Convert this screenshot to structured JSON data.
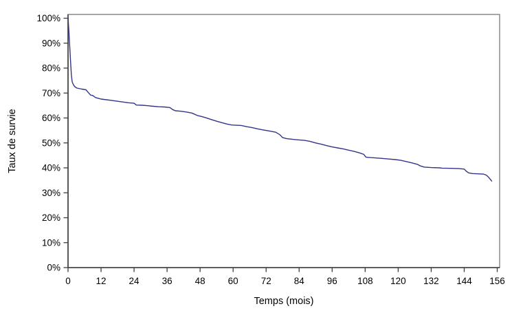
{
  "chart_data": {
    "type": "line",
    "subtype": "kaplan-meier-survival-curve",
    "title": "",
    "xlabel": "Temps (mois)",
    "ylabel": "Taux de survie",
    "xlim": [
      0,
      156
    ],
    "ylim": [
      0,
      100
    ],
    "grid": false,
    "legend": "none",
    "frame": "full-box",
    "line_color": "#333389",
    "axis_color": "#3d3d3d",
    "box_color": "#8a8a8a",
    "x_ticks": [
      0,
      12,
      24,
      36,
      48,
      60,
      72,
      84,
      96,
      108,
      120,
      132,
      144,
      156
    ],
    "y_tick_labels": [
      "0%",
      "10%",
      "20%",
      "30%",
      "40%",
      "50%",
      "60%",
      "70%",
      "80%",
      "90%",
      "100%"
    ],
    "y_tick_values": [
      0,
      10,
      20,
      30,
      40,
      50,
      60,
      70,
      80,
      90,
      100
    ],
    "series": [
      {
        "name": "Taux de survie",
        "points": [
          [
            0,
            100
          ],
          [
            0.3,
            95
          ],
          [
            0.6,
            89
          ],
          [
            0.9,
            83
          ],
          [
            1.2,
            77.5
          ],
          [
            1.5,
            74.5
          ],
          [
            2,
            73.2
          ],
          [
            2.6,
            72.4
          ],
          [
            3.2,
            72.0
          ],
          [
            5,
            71.6
          ],
          [
            6.5,
            71.3
          ],
          [
            7.3,
            70.3
          ],
          [
            8.2,
            69.2
          ],
          [
            9,
            69.0
          ],
          [
            10,
            68.2
          ],
          [
            11,
            67.9
          ],
          [
            12,
            67.6
          ],
          [
            14,
            67.3
          ],
          [
            16,
            67.0
          ],
          [
            18,
            66.7
          ],
          [
            20,
            66.4
          ],
          [
            22,
            66.1
          ],
          [
            24,
            65.9
          ],
          [
            24.8,
            65.2
          ],
          [
            27,
            65.1
          ],
          [
            29,
            64.9
          ],
          [
            31,
            64.7
          ],
          [
            33,
            64.5
          ],
          [
            35,
            64.4
          ],
          [
            37,
            64.2
          ],
          [
            38,
            63.4
          ],
          [
            39,
            62.9
          ],
          [
            41,
            62.7
          ],
          [
            43,
            62.4
          ],
          [
            45,
            62.0
          ],
          [
            45.8,
            61.6
          ],
          [
            47,
            61.0
          ],
          [
            48.5,
            60.6
          ],
          [
            50,
            60.1
          ],
          [
            52,
            59.4
          ],
          [
            54,
            58.7
          ],
          [
            56,
            58.1
          ],
          [
            58,
            57.5
          ],
          [
            59.5,
            57.2
          ],
          [
            63,
            57.0
          ],
          [
            65,
            56.5
          ],
          [
            67,
            56.1
          ],
          [
            69,
            55.6
          ],
          [
            71,
            55.2
          ],
          [
            73,
            54.8
          ],
          [
            75.5,
            54.3
          ],
          [
            77,
            53.3
          ],
          [
            78,
            52.1
          ],
          [
            79.5,
            51.7
          ],
          [
            82,
            51.4
          ],
          [
            84,
            51.2
          ],
          [
            86,
            51.0
          ],
          [
            88,
            50.6
          ],
          [
            90,
            50.0
          ],
          [
            92,
            49.5
          ],
          [
            94,
            48.9
          ],
          [
            96,
            48.4
          ],
          [
            98,
            48.0
          ],
          [
            100,
            47.6
          ],
          [
            102,
            47.1
          ],
          [
            104,
            46.6
          ],
          [
            106,
            46.0
          ],
          [
            107.5,
            45.4
          ],
          [
            108.3,
            44.3
          ],
          [
            110,
            44.1
          ],
          [
            113,
            43.9
          ],
          [
            116,
            43.6
          ],
          [
            119,
            43.3
          ],
          [
            121,
            43.0
          ],
          [
            123,
            42.5
          ],
          [
            125,
            42.0
          ],
          [
            127,
            41.4
          ],
          [
            128,
            40.8
          ],
          [
            129.5,
            40.3
          ],
          [
            132,
            40.1
          ],
          [
            135,
            40.0
          ],
          [
            136,
            39.9
          ],
          [
            139,
            39.8
          ],
          [
            142,
            39.7
          ],
          [
            144,
            39.5
          ],
          [
            144.8,
            38.6
          ],
          [
            145.6,
            38.0
          ],
          [
            147,
            37.7
          ],
          [
            149,
            37.6
          ],
          [
            151,
            37.5
          ],
          [
            152,
            37.1
          ],
          [
            152.8,
            36.3
          ],
          [
            153.4,
            35.5
          ],
          [
            154,
            34.7
          ]
        ]
      }
    ]
  }
}
